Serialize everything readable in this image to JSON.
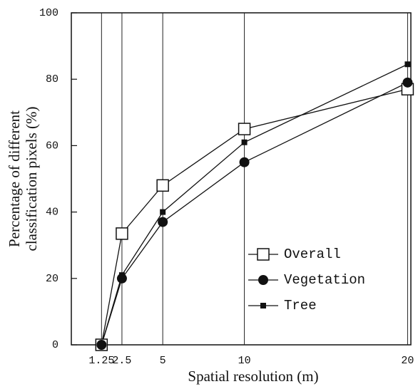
{
  "chart_data": {
    "type": "line",
    "xlabel": "Spatial resolution (m)",
    "ylabel": [
      "Percentage of different",
      "classification pixels (%)"
    ],
    "x": [
      1.25,
      2.5,
      5,
      10,
      20
    ],
    "series": [
      {
        "name": "Overall",
        "color": "#111111",
        "marker": "open-square",
        "values": [
          0,
          33.5,
          48,
          65,
          77
        ]
      },
      {
        "name": "Vegetation",
        "color": "#111111",
        "marker": "filled-circle",
        "values": [
          0,
          20,
          37,
          55,
          79
        ]
      },
      {
        "name": "Tree",
        "color": "#111111",
        "marker": "small-filled-square",
        "values": [
          0,
          21,
          40,
          61,
          84.5
        ]
      }
    ],
    "xlim": [
      -0.6,
      20.2
    ],
    "xticks": [
      1.25,
      2.5,
      5,
      10,
      20
    ],
    "ylim": [
      0,
      100
    ],
    "yticks": [
      0,
      20,
      40,
      60,
      80,
      100
    ],
    "xgrid": true,
    "legend": "center right"
  }
}
